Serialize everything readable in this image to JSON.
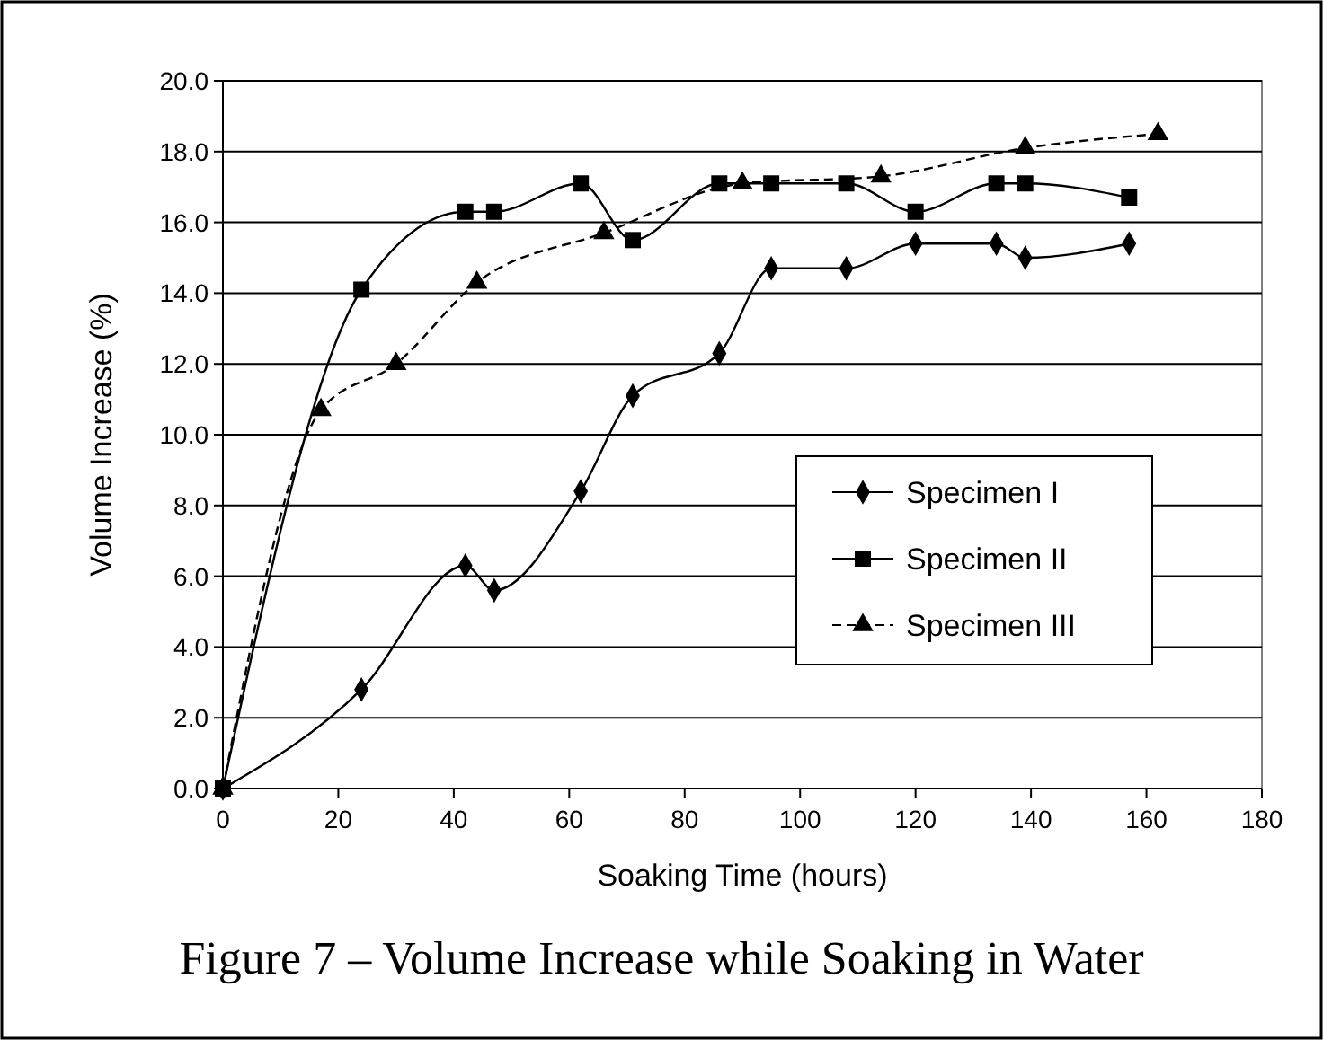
{
  "chart_data": {
    "type": "line",
    "title": "Figure 7 – Volume Increase while Soaking in Water",
    "xlabel": "Soaking Time (hours)",
    "ylabel": "Volume Increase (%)",
    "xlim": [
      0,
      180
    ],
    "xticks": [
      0,
      20,
      40,
      60,
      80,
      100,
      120,
      140,
      160,
      180
    ],
    "ylim": [
      0,
      20
    ],
    "yticks": [
      {
        "value": 0,
        "label": "0.0"
      },
      {
        "value": 2,
        "label": "2.0"
      },
      {
        "value": 4,
        "label": "4.0"
      },
      {
        "value": 6,
        "label": "6.0"
      },
      {
        "value": 8,
        "label": "8.0"
      },
      {
        "value": 10,
        "label": "10.0"
      },
      {
        "value": 12,
        "label": "12.0"
      },
      {
        "value": 14,
        "label": "14.0"
      },
      {
        "value": 16,
        "label": "16.0"
      },
      {
        "value": 18,
        "label": "18.0"
      },
      {
        "value": 20,
        "label": "20.0"
      }
    ],
    "grid": "y",
    "legend": "right",
    "series": [
      {
        "name": "Specimen I",
        "color": "#000000",
        "marker": "diamond",
        "line_style": "solid",
        "x": [
          0,
          24,
          42,
          47,
          62,
          71,
          86,
          95,
          108,
          120,
          134,
          139,
          157
        ],
        "values": [
          0,
          2.8,
          6.3,
          5.6,
          8.4,
          11.1,
          12.3,
          14.7,
          14.7,
          15.4,
          15.4,
          15.0,
          15.4
        ]
      },
      {
        "name": "Specimen II",
        "color": "#000000",
        "marker": "square",
        "line_style": "solid",
        "x": [
          0,
          24,
          42,
          47,
          62,
          71,
          86,
          95,
          108,
          120,
          134,
          139,
          157
        ],
        "values": [
          0,
          14.1,
          16.3,
          16.3,
          17.1,
          15.5,
          17.1,
          17.1,
          17.1,
          16.3,
          17.1,
          17.1,
          16.7
        ]
      },
      {
        "name": "Specimen III",
        "color": "#000000",
        "marker": "triangle",
        "line_style": "dashed",
        "x": [
          0,
          17,
          30,
          44,
          66,
          90,
          114,
          139,
          162
        ],
        "values": [
          0,
          10.7,
          12.0,
          14.3,
          15.7,
          17.1,
          17.3,
          18.1,
          18.5
        ]
      }
    ]
  }
}
